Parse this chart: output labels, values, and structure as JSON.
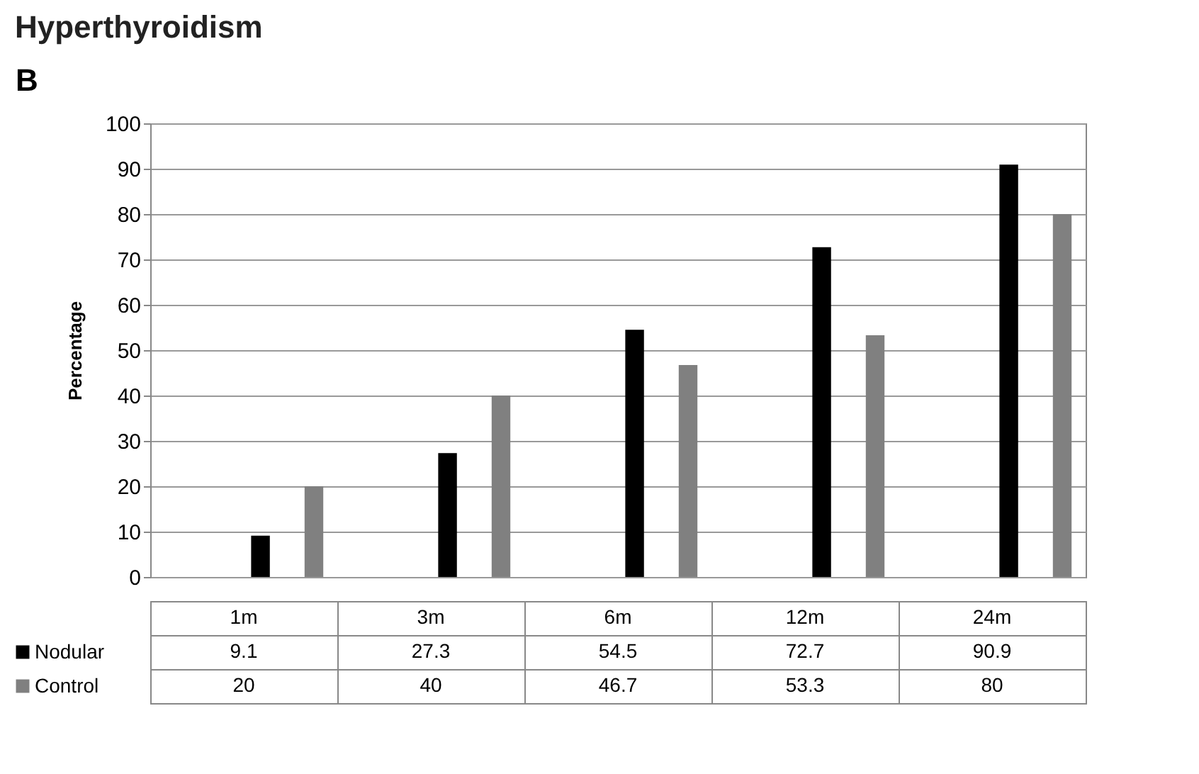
{
  "chart_data": {
    "type": "bar",
    "title": "Hyperthyroidism",
    "ylabel": "Percentage",
    "annotations": [
      "B"
    ],
    "categories": [
      "1m",
      "3m",
      "6m",
      "12m",
      "24m"
    ],
    "series": [
      {
        "name": "Nodular",
        "color": "#000000",
        "values": [
          9.1,
          27.3,
          54.5,
          72.7,
          90.9
        ]
      },
      {
        "name": "Control",
        "color": "#808080",
        "values": [
          20,
          40,
          46.7,
          53.3,
          80
        ]
      }
    ],
    "ylim": [
      0,
      100
    ],
    "yticks": [
      0,
      10,
      20,
      30,
      40,
      50,
      60,
      70,
      80,
      90,
      100
    ],
    "grid": "y",
    "legend": "bottom",
    "data_labels": true
  }
}
